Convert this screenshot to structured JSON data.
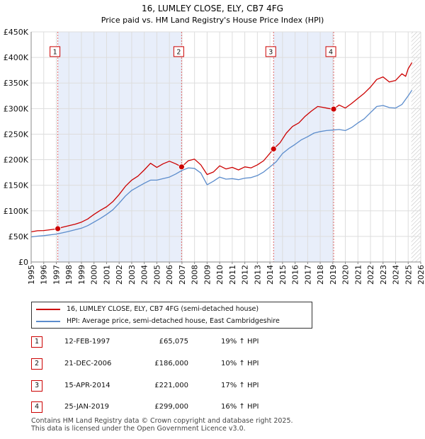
{
  "chart_data": {
    "type": "line",
    "title": "16, LUMLEY CLOSE, ELY, CB7 4FG",
    "subtitle": "Price paid vs. HM Land Registry's House Price Index (HPI)",
    "xlim": [
      1995,
      2026
    ],
    "ylim": [
      0,
      450000
    ],
    "x_ticks": [
      1995,
      1996,
      1997,
      1998,
      1999,
      2000,
      2001,
      2002,
      2003,
      2004,
      2005,
      2006,
      2007,
      2008,
      2009,
      2010,
      2011,
      2012,
      2013,
      2014,
      2015,
      2016,
      2017,
      2018,
      2019,
      2020,
      2021,
      2022,
      2023,
      2024,
      2025,
      2026
    ],
    "y_ticks": [
      {
        "value": 0,
        "label": "£0"
      },
      {
        "value": 50000,
        "label": "£50K"
      },
      {
        "value": 100000,
        "label": "£100K"
      },
      {
        "value": 150000,
        "label": "£150K"
      },
      {
        "value": 200000,
        "label": "£200K"
      },
      {
        "value": 250000,
        "label": "£250K"
      },
      {
        "value": 300000,
        "label": "£300K"
      },
      {
        "value": 350000,
        "label": "£350K"
      },
      {
        "value": 400000,
        "label": "£400K"
      },
      {
        "value": 450000,
        "label": "£450K"
      }
    ],
    "grid": true,
    "shaded_periods": [
      [
        1997.12,
        2006.97
      ],
      [
        2014.29,
        2019.07
      ]
    ],
    "future_start": 2025.25,
    "series": [
      {
        "name": "16, LUMLEY CLOSE, ELY, CB7 4FG (semi-detached house)",
        "color": "#cc0000",
        "points": [
          [
            1995.0,
            59000
          ],
          [
            1995.5,
            61000
          ],
          [
            1996.0,
            61500
          ],
          [
            1996.5,
            63000
          ],
          [
            1997.12,
            65075
          ],
          [
            1997.5,
            68000
          ],
          [
            1998.0,
            71000
          ],
          [
            1998.5,
            74000
          ],
          [
            1999.0,
            78000
          ],
          [
            1999.5,
            84000
          ],
          [
            2000.0,
            93000
          ],
          [
            2000.5,
            101000
          ],
          [
            2001.0,
            108000
          ],
          [
            2001.5,
            118000
          ],
          [
            2002.0,
            132000
          ],
          [
            2002.5,
            148000
          ],
          [
            2003.0,
            160000
          ],
          [
            2003.5,
            168000
          ],
          [
            2004.0,
            180000
          ],
          [
            2004.5,
            193000
          ],
          [
            2005.0,
            185000
          ],
          [
            2005.5,
            192000
          ],
          [
            2006.0,
            197000
          ],
          [
            2006.5,
            192000
          ],
          [
            2006.97,
            186000
          ],
          [
            2007.5,
            198000
          ],
          [
            2008.0,
            201000
          ],
          [
            2008.5,
            190000
          ],
          [
            2009.0,
            171000
          ],
          [
            2009.5,
            176000
          ],
          [
            2010.0,
            188000
          ],
          [
            2010.5,
            182000
          ],
          [
            2011.0,
            185000
          ],
          [
            2011.5,
            180000
          ],
          [
            2012.0,
            186000
          ],
          [
            2012.5,
            184000
          ],
          [
            2013.0,
            190000
          ],
          [
            2013.5,
            198000
          ],
          [
            2014.29,
            221000
          ],
          [
            2014.8,
            233000
          ],
          [
            2015.3,
            252000
          ],
          [
            2015.8,
            265000
          ],
          [
            2016.3,
            272000
          ],
          [
            2016.8,
            285000
          ],
          [
            2017.3,
            295000
          ],
          [
            2017.8,
            304000
          ],
          [
            2018.3,
            302000
          ],
          [
            2018.7,
            300000
          ],
          [
            2019.07,
            299000
          ],
          [
            2019.5,
            307000
          ],
          [
            2020.0,
            301000
          ],
          [
            2020.5,
            310000
          ],
          [
            2021.0,
            320000
          ],
          [
            2021.5,
            330000
          ],
          [
            2022.0,
            342000
          ],
          [
            2022.5,
            357000
          ],
          [
            2023.0,
            362000
          ],
          [
            2023.5,
            352000
          ],
          [
            2024.0,
            355000
          ],
          [
            2024.5,
            368000
          ],
          [
            2024.8,
            363000
          ],
          [
            2025.0,
            378000
          ],
          [
            2025.3,
            390000
          ]
        ]
      },
      {
        "name": "HPI: Average price, semi-detached house, East Cambridgeshire",
        "color": "#5b8ccc",
        "points": [
          [
            1995.0,
            49000
          ],
          [
            1995.5,
            50500
          ],
          [
            1996.0,
            51500
          ],
          [
            1996.5,
            53000
          ],
          [
            1997.0,
            54500
          ],
          [
            1997.5,
            57000
          ],
          [
            1998.0,
            60000
          ],
          [
            1998.5,
            63000
          ],
          [
            1999.0,
            66000
          ],
          [
            1999.5,
            71000
          ],
          [
            2000.0,
            78000
          ],
          [
            2000.5,
            85000
          ],
          [
            2001.0,
            93000
          ],
          [
            2001.5,
            102000
          ],
          [
            2002.0,
            115000
          ],
          [
            2002.5,
            129000
          ],
          [
            2003.0,
            140000
          ],
          [
            2003.5,
            147000
          ],
          [
            2004.0,
            154000
          ],
          [
            2004.5,
            160000
          ],
          [
            2005.0,
            160000
          ],
          [
            2005.5,
            163000
          ],
          [
            2006.0,
            166000
          ],
          [
            2006.5,
            172000
          ],
          [
            2007.0,
            179000
          ],
          [
            2007.5,
            184000
          ],
          [
            2008.0,
            183000
          ],
          [
            2008.5,
            174000
          ],
          [
            2009.0,
            151000
          ],
          [
            2009.5,
            158000
          ],
          [
            2010.0,
            166000
          ],
          [
            2010.5,
            162000
          ],
          [
            2011.0,
            163000
          ],
          [
            2011.5,
            161000
          ],
          [
            2012.0,
            164000
          ],
          [
            2012.5,
            165000
          ],
          [
            2013.0,
            169000
          ],
          [
            2013.5,
            176000
          ],
          [
            2014.0,
            186000
          ],
          [
            2014.5,
            196000
          ],
          [
            2015.0,
            212000
          ],
          [
            2015.5,
            222000
          ],
          [
            2016.0,
            230000
          ],
          [
            2016.5,
            239000
          ],
          [
            2017.0,
            245000
          ],
          [
            2017.5,
            252000
          ],
          [
            2018.0,
            255000
          ],
          [
            2018.5,
            257000
          ],
          [
            2019.0,
            258000
          ],
          [
            2019.5,
            259000
          ],
          [
            2020.0,
            257000
          ],
          [
            2020.5,
            263000
          ],
          [
            2021.0,
            272000
          ],
          [
            2021.5,
            280000
          ],
          [
            2022.0,
            292000
          ],
          [
            2022.5,
            304000
          ],
          [
            2023.0,
            306000
          ],
          [
            2023.5,
            302000
          ],
          [
            2024.0,
            301000
          ],
          [
            2024.5,
            308000
          ],
          [
            2025.0,
            325000
          ],
          [
            2025.3,
            336000
          ]
        ]
      }
    ],
    "transactions": [
      {
        "num": "1",
        "x": 1997.12,
        "price": 65075
      },
      {
        "num": "2",
        "x": 2006.97,
        "price": 186000
      },
      {
        "num": "3",
        "x": 2014.29,
        "price": 221000
      },
      {
        "num": "4",
        "x": 2019.07,
        "price": 299000
      }
    ],
    "marker_box_value": 410000
  },
  "legend": {
    "property": "16, LUMLEY CLOSE, ELY, CB7 4FG (semi-detached house)",
    "hpi": "HPI: Average price, semi-detached house, East Cambridgeshire",
    "property_color": "#cc0000",
    "hpi_color": "#5b8ccc"
  },
  "table": [
    {
      "num": "1",
      "date": "12-FEB-1997",
      "price": "£65,075",
      "hpi": "19% ↑ HPI"
    },
    {
      "num": "2",
      "date": "21-DEC-2006",
      "price": "£186,000",
      "hpi": "10% ↑ HPI"
    },
    {
      "num": "3",
      "date": "15-APR-2014",
      "price": "£221,000",
      "hpi": "17% ↑ HPI"
    },
    {
      "num": "4",
      "date": "25-JAN-2019",
      "price": "£299,000",
      "hpi": "16% ↑ HPI"
    }
  ],
  "footer": {
    "line1": "Contains HM Land Registry data © Crown copyright and database right 2025.",
    "line2": "This data is licensed under the Open Government Licence v3.0."
  }
}
